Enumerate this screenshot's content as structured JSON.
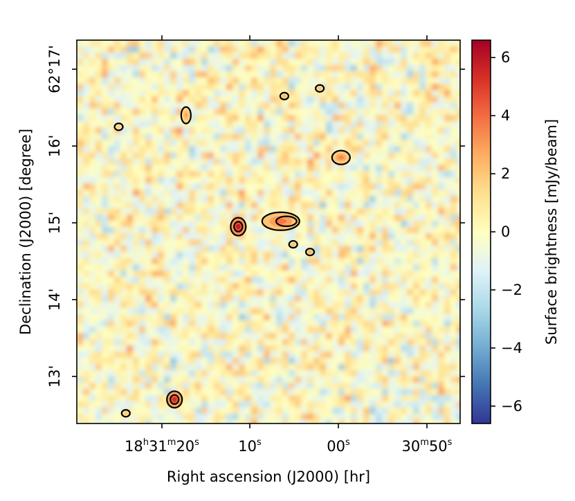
{
  "chart_data": {
    "type": "heatmap",
    "title": "",
    "xlabel": "Right ascension (J2000) [hr]",
    "ylabel": "Declination (J2000) [degree]",
    "colorbar_label": "Surface brightness [mJy/beam]",
    "colormap": "RdYlBu_r",
    "value_range": [
      -6.6,
      6.6
    ],
    "colorbar_ticks": [
      6,
      4,
      2,
      0,
      -2,
      -4,
      -6
    ],
    "colorbar_tick_labels": [
      "6",
      "4",
      "2",
      "0",
      "−2",
      "−4",
      "−6"
    ],
    "x_tick_labels": [
      {
        "hms": "18",
        "h": "h",
        "m_val": "31",
        "m": "m",
        "s_val": "20",
        "s": "s"
      },
      {
        "s_val": "10",
        "s": "s"
      },
      {
        "s_val": "00",
        "s": "s"
      },
      {
        "m_val": "30",
        "m": "m",
        "s_val": "50",
        "s": "s"
      }
    ],
    "y_tick_labels": [
      "62°17'",
      "16'",
      "15'",
      "14'",
      "13'"
    ],
    "grid": false,
    "colors": {
      "contour": "#000000",
      "background_noise": "#f6f3c4"
    },
    "sources": [
      {
        "name": "source-top-left",
        "ra_s": 17.2,
        "dec_arcmin": 16.4,
        "peak": 2.8
      },
      {
        "name": "source-top-mid",
        "ra_s": 6.1,
        "dec_arcmin": 16.65,
        "peak": 2.4
      },
      {
        "name": "source-top-edge",
        "ra_s": 2.1,
        "dec_arcmin": 16.75,
        "peak": 2.2
      },
      {
        "name": "source-upper-right",
        "ra_s": -0.3,
        "dec_arcmin": 15.85,
        "peak": 3.4
      },
      {
        "name": "source-point-left",
        "ra_s": 24.8,
        "dec_arcmin": 16.25,
        "peak": 1.8
      },
      {
        "name": "source-central-compact",
        "ra_s": 11.3,
        "dec_arcmin": 14.95,
        "peak": 5.8
      },
      {
        "name": "source-central-extended",
        "ra_s": 6.5,
        "dec_arcmin": 15.02,
        "peak": 3.8
      },
      {
        "name": "source-central-blob",
        "ra_s": 5.1,
        "dec_arcmin": 14.72,
        "peak": 2.2
      },
      {
        "name": "source-central-lower",
        "ra_s": 3.2,
        "dec_arcmin": 14.62,
        "peak": 2.6
      },
      {
        "name": "source-bottom-left",
        "ra_s": 18.5,
        "dec_arcmin": 12.7,
        "peak": 5.4
      },
      {
        "name": "source-bottom-corner",
        "ra_s": 24.0,
        "dec_arcmin": 12.52,
        "peak": 2.0
      }
    ]
  }
}
